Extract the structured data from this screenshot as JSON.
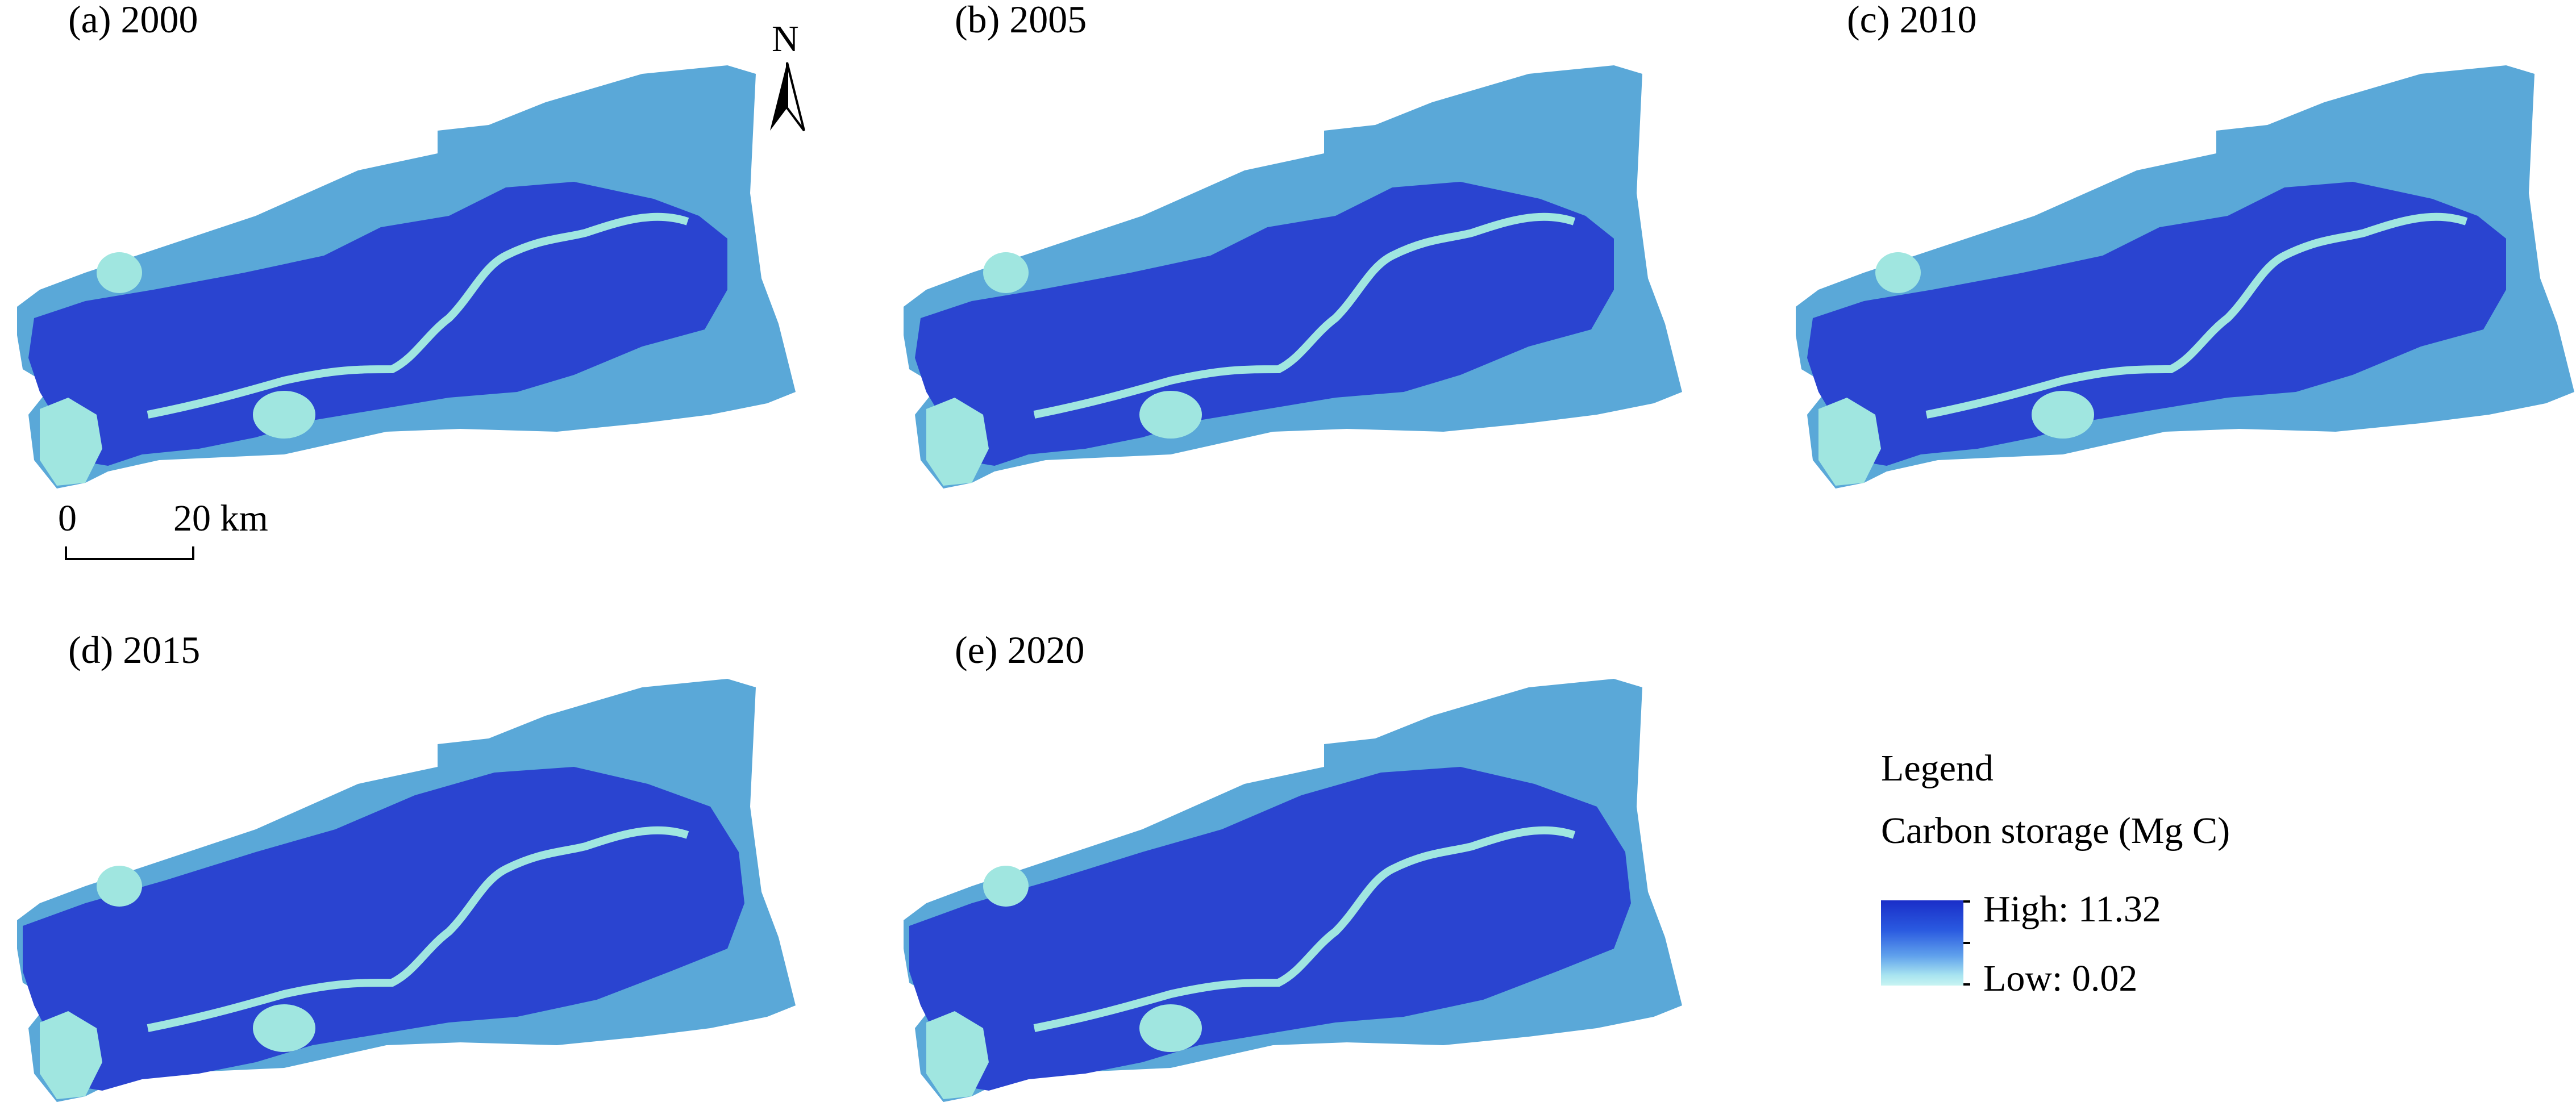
{
  "panels": [
    {
      "id": "a",
      "label": "(a) 2000"
    },
    {
      "id": "b",
      "label": "(b) 2005"
    },
    {
      "id": "c",
      "label": "(c) 2010"
    },
    {
      "id": "d",
      "label": "(d) 2015"
    },
    {
      "id": "e",
      "label": "(e) 2020"
    }
  ],
  "north_arrow": {
    "label": "N"
  },
  "scale_bar": {
    "start_label": "0",
    "end_label": "20 km"
  },
  "legend": {
    "title": "Legend",
    "subtitle": "Carbon storage (Mg C)",
    "high_label": "High: 11.32",
    "low_label": "Low: 0.02",
    "colors": {
      "high": "#1a2ec8",
      "mid": "#5fa0ec",
      "low": "#c8f4f2",
      "background_region": "#5aa8d8",
      "water": "#a0e6e0"
    }
  }
}
